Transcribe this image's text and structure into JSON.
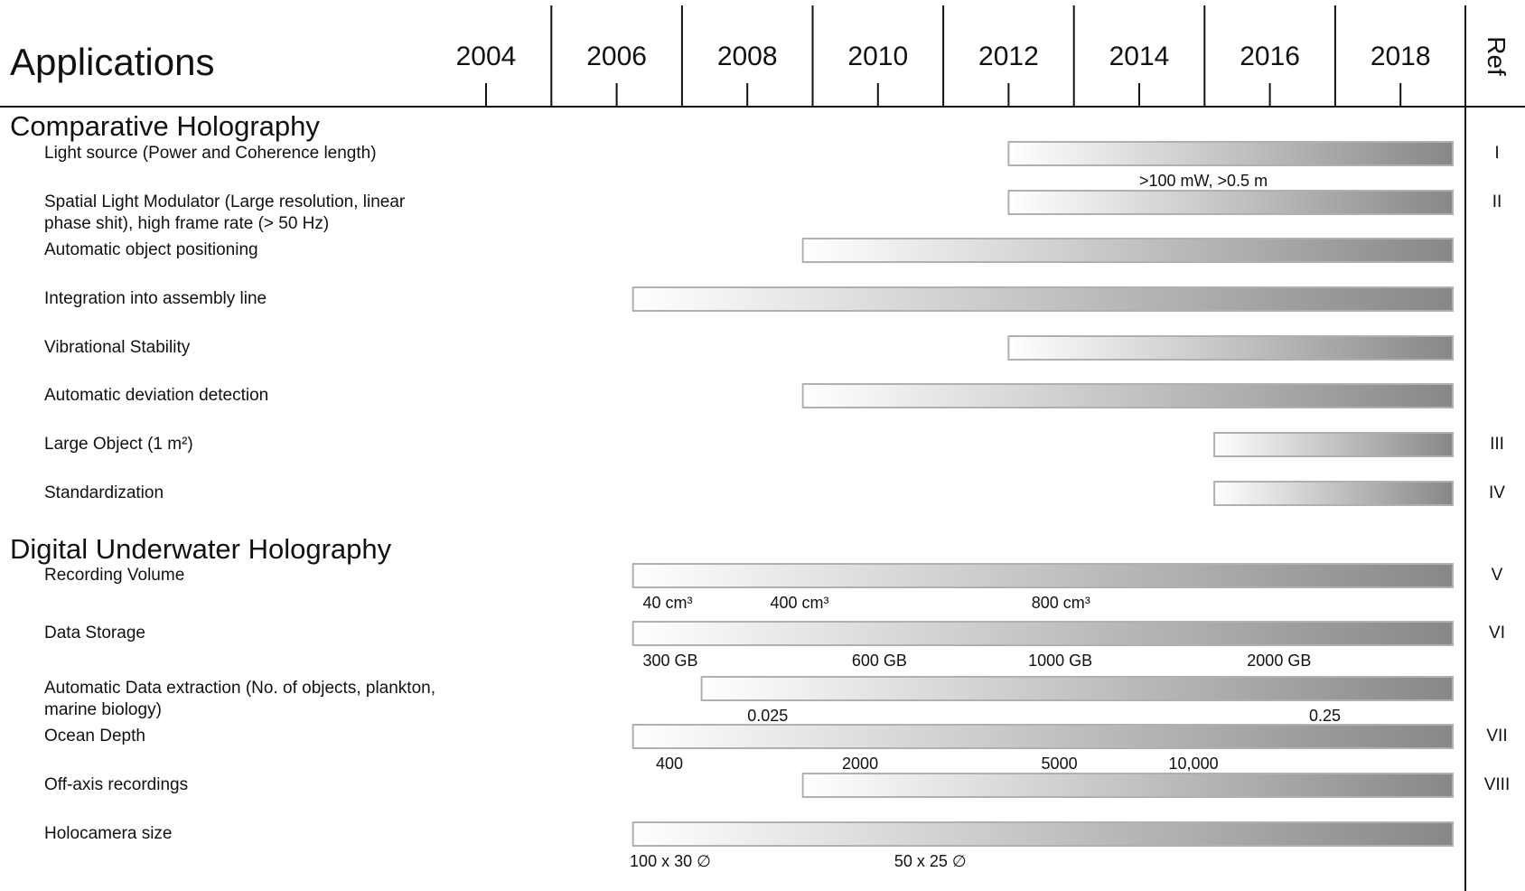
{
  "chart_data": {
    "type": "gantt",
    "title": "Applications",
    "ref_header": "Ref",
    "year_ticks": [
      2004,
      2006,
      2008,
      2010,
      2012,
      2014,
      2016,
      2018
    ],
    "x_range": [
      2003,
      2019.5
    ],
    "bar_gradient": [
      "#ffffff",
      "#878787"
    ],
    "sections": [
      {
        "name": "Comparative Holography",
        "rows": [
          {
            "label": [
              "Light source (Power and Coherence length)"
            ],
            "start": 2012.0,
            "end": 2018.8,
            "ref": "I",
            "annotations": [
              {
                "text": ">100 mW, >0.5 m",
                "x": 2014.0
              }
            ]
          },
          {
            "label": [
              "Spatial Light Modulator (Large resolution, linear",
              "phase shit), high frame rate (> 50 Hz)"
            ],
            "start": 2012.0,
            "end": 2018.8,
            "ref": "II",
            "annotations": []
          },
          {
            "label": [
              "Automatic object positioning"
            ],
            "start": 2008.85,
            "end": 2018.8,
            "ref": "",
            "annotations": []
          },
          {
            "label": [
              "Integration into assembly line"
            ],
            "start": 2006.25,
            "end": 2018.8,
            "ref": "",
            "annotations": []
          },
          {
            "label": [
              "Vibrational Stability"
            ],
            "start": 2012.0,
            "end": 2018.8,
            "ref": "",
            "annotations": []
          },
          {
            "label": [
              "Automatic deviation detection"
            ],
            "start": 2008.85,
            "end": 2018.8,
            "ref": "",
            "annotations": []
          },
          {
            "label": [
              "Large Object (1 m²)"
            ],
            "start": 2015.15,
            "end": 2018.8,
            "ref": "III",
            "annotations": []
          },
          {
            "label": [
              "Standardization"
            ],
            "start": 2015.15,
            "end": 2018.8,
            "ref": "IV",
            "annotations": []
          }
        ]
      },
      {
        "name": "Digital Underwater Holography",
        "rows": [
          {
            "label": [
              "Recording Volume"
            ],
            "start": 2006.25,
            "end": 2018.8,
            "ref": "V",
            "annotations": [
              {
                "text": "40 cm³",
                "x": 2006.4
              },
              {
                "text": "400 cm³",
                "x": 2008.35
              },
              {
                "text": "800 cm³",
                "x": 2012.35
              }
            ]
          },
          {
            "label": [
              "Data Storage"
            ],
            "start": 2006.25,
            "end": 2018.8,
            "ref": "VI",
            "annotations": [
              {
                "text": "300 GB",
                "x": 2006.4
              },
              {
                "text": "600 GB",
                "x": 2009.6
              },
              {
                "text": "1000 GB",
                "x": 2012.3
              },
              {
                "text": "2000 GB",
                "x": 2015.65
              }
            ]
          },
          {
            "label": [
              "Automatic Data extraction (No. of objects, plankton,",
              "marine biology)"
            ],
            "start": 2007.3,
            "end": 2018.8,
            "ref": "",
            "annotations": [
              {
                "text": "0.025",
                "x": 2008.0
              },
              {
                "text": "0.25",
                "x": 2016.6
              }
            ]
          },
          {
            "label": [
              "Ocean Depth"
            ],
            "start": 2006.25,
            "end": 2018.8,
            "ref": "VII",
            "annotations": [
              {
                "text": "400",
                "x": 2006.6
              },
              {
                "text": "2000",
                "x": 2009.45
              },
              {
                "text": "5000",
                "x": 2012.5
              },
              {
                "text": "10,000",
                "x": 2014.45
              }
            ]
          },
          {
            "label": [
              "Off-axis recordings"
            ],
            "start": 2008.85,
            "end": 2018.8,
            "ref": "VIII",
            "annotations": []
          },
          {
            "label": [
              "Holocamera size"
            ],
            "start": 2006.25,
            "end": 2018.8,
            "ref": "",
            "annotations": [
              {
                "text": "100 x 30 ∅",
                "x": 2006.2
              },
              {
                "text": "50 x 25 ∅",
                "x": 2010.25
              }
            ]
          }
        ]
      }
    ]
  }
}
